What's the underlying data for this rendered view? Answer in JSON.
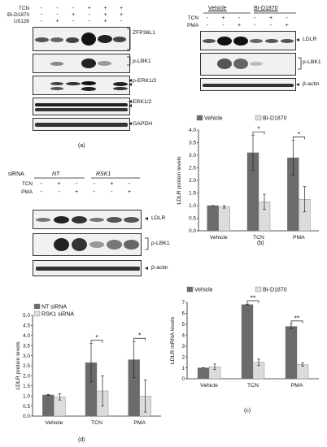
{
  "panel_a": {
    "letter": "(a)",
    "row_labels": [
      "TCN",
      "BI-D1870",
      "U0126"
    ],
    "signs": [
      [
        "-",
        "-",
        "-",
        "+",
        "+",
        "+"
      ],
      [
        "-",
        "-",
        "+",
        "-",
        "+",
        "+"
      ],
      [
        "-",
        "+",
        "-",
        "-",
        "+",
        "-"
      ]
    ],
    "blot_labels": [
      "ZFP36L1",
      "p-LBK1",
      "p-ERK1/2",
      "ERK1/2",
      "GAPDH"
    ]
  },
  "panel_b": {
    "letter": "(b)",
    "group_labels": [
      "Vehicle",
      "BI-D1870"
    ],
    "row_labels": [
      "TCN",
      "PMA"
    ],
    "signs": [
      [
        "-",
        "+",
        "-",
        "-",
        "+",
        "-"
      ],
      [
        "-",
        "-",
        "+",
        "-",
        "-",
        "+"
      ]
    ],
    "blot_labels": [
      "LDLR",
      "p-LBK1",
      "β-actin"
    ]
  },
  "panel_c": {
    "letter": "(c)"
  },
  "panel_d": {
    "letter": "(d)",
    "siRNA_label": "siRNA",
    "group_labels": [
      "NT",
      "RSK1"
    ],
    "row_labels": [
      "TCN",
      "PMA"
    ],
    "signs": [
      [
        "-",
        "+",
        "-",
        "-",
        "+",
        "-"
      ],
      [
        "-",
        "-",
        "+",
        "-",
        "-",
        "+"
      ]
    ],
    "blot_labels": [
      "LDLR",
      "p-LBK1",
      "β-actin"
    ]
  },
  "chart_data": [
    {
      "id": "b",
      "type": "bar",
      "ylabel": "LDLR protein levels",
      "categories": [
        "Vehicle",
        "TCN",
        "PMA"
      ],
      "series": [
        {
          "name": "Vehicle",
          "values": [
            1.0,
            3.1,
            2.9
          ],
          "errors": [
            0.0,
            0.7,
            0.7
          ],
          "color": "#6b6b6b"
        },
        {
          "name": "BI-D1870",
          "values": [
            0.95,
            1.15,
            1.25
          ],
          "errors": [
            0.05,
            0.3,
            0.5
          ],
          "color": "#dcdcdc"
        }
      ],
      "ylim": [
        0,
        4.0
      ],
      "yticks": [
        "0.0",
        "0.5",
        "1.0",
        "1.5",
        "2.0",
        "2.5",
        "3.0",
        "3.5",
        "4.0"
      ],
      "significance": [
        "",
        "*",
        "*"
      ],
      "legend": "top"
    },
    {
      "id": "c",
      "type": "bar",
      "ylabel": "LDLR mRNA levels",
      "categories": [
        "Vehicle",
        "TCN",
        "PMA"
      ],
      "series": [
        {
          "name": "Vehicle",
          "values": [
            1.0,
            6.8,
            4.8
          ],
          "errors": [
            0.0,
            0.05,
            0.2
          ],
          "color": "#6b6b6b"
        },
        {
          "name": "BI-D1870",
          "values": [
            1.1,
            1.5,
            1.3
          ],
          "errors": [
            0.25,
            0.3,
            0.15
          ],
          "color": "#dcdcdc"
        }
      ],
      "ylim": [
        0,
        7
      ],
      "yticks": [
        "0",
        "1",
        "2",
        "3",
        "4",
        "5",
        "6",
        "7"
      ],
      "significance": [
        "",
        "**",
        "**"
      ],
      "legend": "top"
    },
    {
      "id": "d",
      "type": "bar",
      "ylabel": "LDLR protein levels",
      "categories": [
        "Vehicle",
        "TCN",
        "PMA"
      ],
      "series": [
        {
          "name": "NT siRNA",
          "values": [
            1.05,
            2.65,
            2.8
          ],
          "errors": [
            0.02,
            0.95,
            0.9
          ],
          "color": "#6b6b6b"
        },
        {
          "name": "RSK1 siRNA",
          "values": [
            0.95,
            1.25,
            1.0
          ],
          "errors": [
            0.15,
            0.75,
            0.8
          ],
          "color": "#dcdcdc"
        }
      ],
      "ylim": [
        0,
        5
      ],
      "yticks": [
        "0.0",
        "0.5",
        "1.0",
        "1.5",
        "2.0",
        "2.5",
        "3.0",
        "3.5",
        "4.0",
        "4.5",
        "5.0"
      ],
      "significance": [
        "",
        "*",
        "*"
      ],
      "legend": "top-left"
    }
  ]
}
